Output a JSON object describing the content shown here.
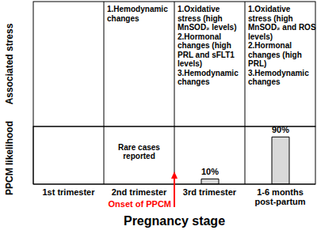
{
  "chart_data": {
    "type": "bar",
    "xlabel": "Pregnancy stage",
    "ylabel": "PPCM likelihood",
    "categories": [
      "1st trimester",
      "2nd trimester",
      "3rd trimester",
      "1-6 months post-partum"
    ],
    "values": [
      null,
      null,
      10,
      90
    ],
    "value_labels": [
      null,
      null,
      "10%",
      "90%"
    ],
    "data_labels": true,
    "color": "#d9d9d9",
    "ylim": [
      0,
      110
    ],
    "tick_labels": "x",
    "top_panel": {
      "ylabel": "Associated stress",
      "texts": [
        [],
        [
          "1.Hemodynamic changes"
        ],
        [
          "1.Oxidative stress (high MnSOD₂ levels)",
          "2.Hormonal changes (high PRL and sFLT1 levels)",
          "3.Hemodynamic changes"
        ],
        [
          "1.Oxidative stress (high MnSOD₂ and ROS levels)",
          "2.Hormonal changes (high PRL)",
          "3.Hemodynamic changes"
        ]
      ]
    },
    "annotations": [
      {
        "text": "Rare cases reported",
        "category": "2nd trimester"
      },
      {
        "text": "Onset of PPCM",
        "category": "3rd trimester",
        "color": "#ff0000"
      }
    ]
  }
}
